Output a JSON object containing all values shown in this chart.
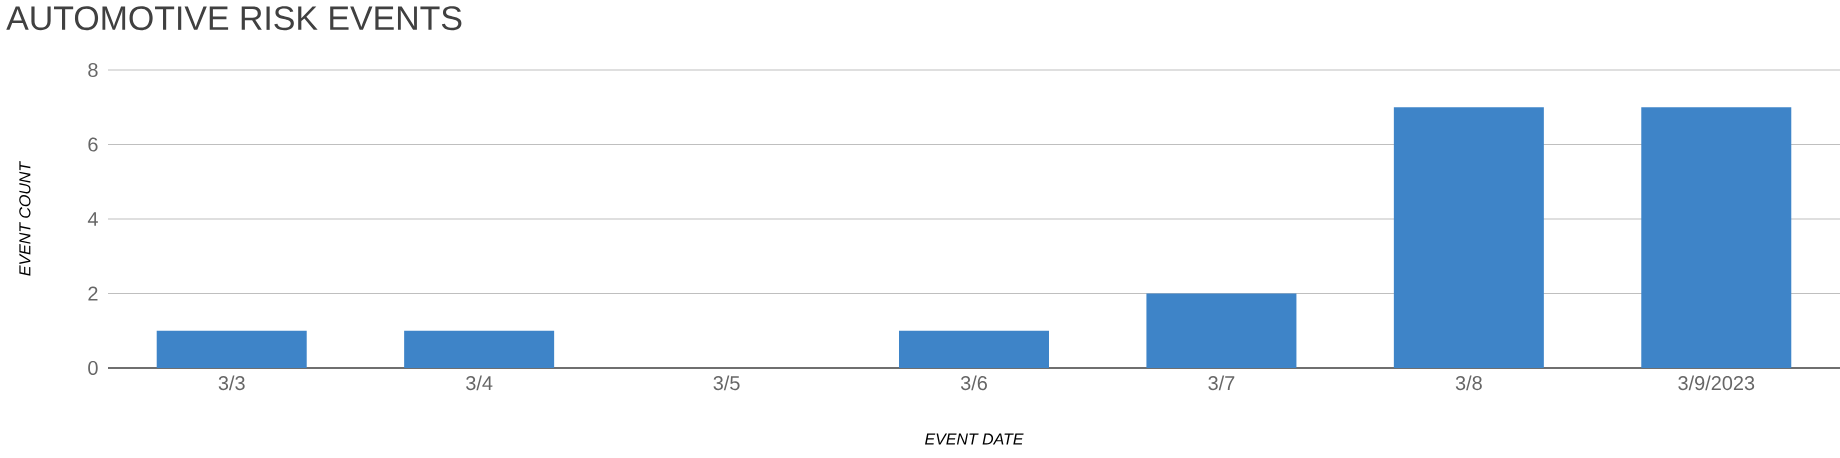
{
  "chart_data": {
    "type": "bar",
    "title": "AUTOMOTIVE RISK EVENTS",
    "xlabel": "EVENT DATE",
    "ylabel": "EVENT COUNT",
    "categories": [
      "3/3",
      "3/4",
      "3/5",
      "3/6",
      "3/7",
      "3/8",
      "3/9/2023"
    ],
    "values": [
      1,
      1,
      0,
      1,
      2,
      7,
      7
    ],
    "color": "#3e84c8",
    "ylim": [
      0,
      8
    ],
    "yticks": [
      0,
      2,
      4,
      6,
      8
    ],
    "grid": "y"
  }
}
